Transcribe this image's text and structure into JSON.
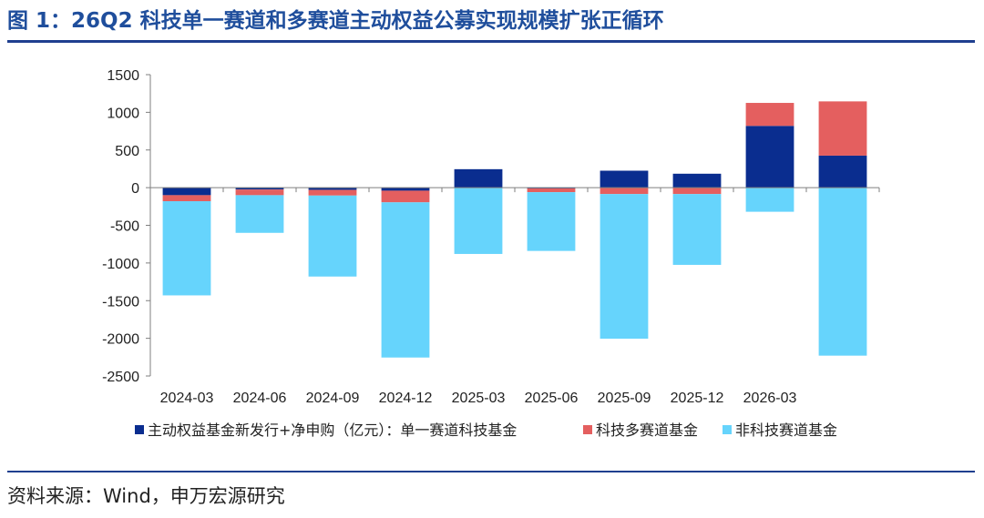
{
  "title": "图 1：26Q2 科技单一赛道和多赛道主动权益公募实现规模扩张正循环",
  "source": "资料来源：Wind，申万宏源研究",
  "chart_data": {
    "type": "bar",
    "stacked": true,
    "categories": [
      "2024-03",
      "2024-06",
      "2024-09",
      "2024-12",
      "2025-03",
      "2025-06",
      "2025-09",
      "2025-12",
      "2026-03",
      ""
    ],
    "x_tick_labels": [
      "2024-03",
      "2024-06",
      "2024-09",
      "2024-12",
      "2025-03",
      "2025-06",
      "2025-09",
      "2025-12",
      "2026-03"
    ],
    "series": [
      {
        "name": "主动权益基金新发行+净申购（亿元）：单一赛道科技基金",
        "color": "#0a2d8f",
        "values": [
          -100,
          -25,
          -30,
          -40,
          245,
          -10,
          225,
          185,
          820,
          425
        ]
      },
      {
        "name": "科技多赛道基金",
        "color": "#e45f5f",
        "values": [
          -80,
          -75,
          -75,
          -155,
          0,
          -50,
          -85,
          -85,
          305,
          720
        ]
      },
      {
        "name": "非科技赛道基金",
        "color": "#66d4fc",
        "values": [
          -1250,
          -500,
          -1075,
          -2060,
          -880,
          -780,
          -1920,
          -940,
          -320,
          -2230
        ]
      }
    ],
    "legend_prefix": "主动权益基金新发行+净申购（亿元）：",
    "legend_labels": [
      "单一赛道科技基金",
      "科技多赛道基金",
      "非科技赛道基金"
    ],
    "ylim": [
      -2500,
      1500
    ],
    "y_ticks": [
      1500,
      1000,
      500,
      0,
      -500,
      -1000,
      -1500,
      -2000,
      -2500
    ],
    "legend_position": "bottom",
    "grid": false
  }
}
